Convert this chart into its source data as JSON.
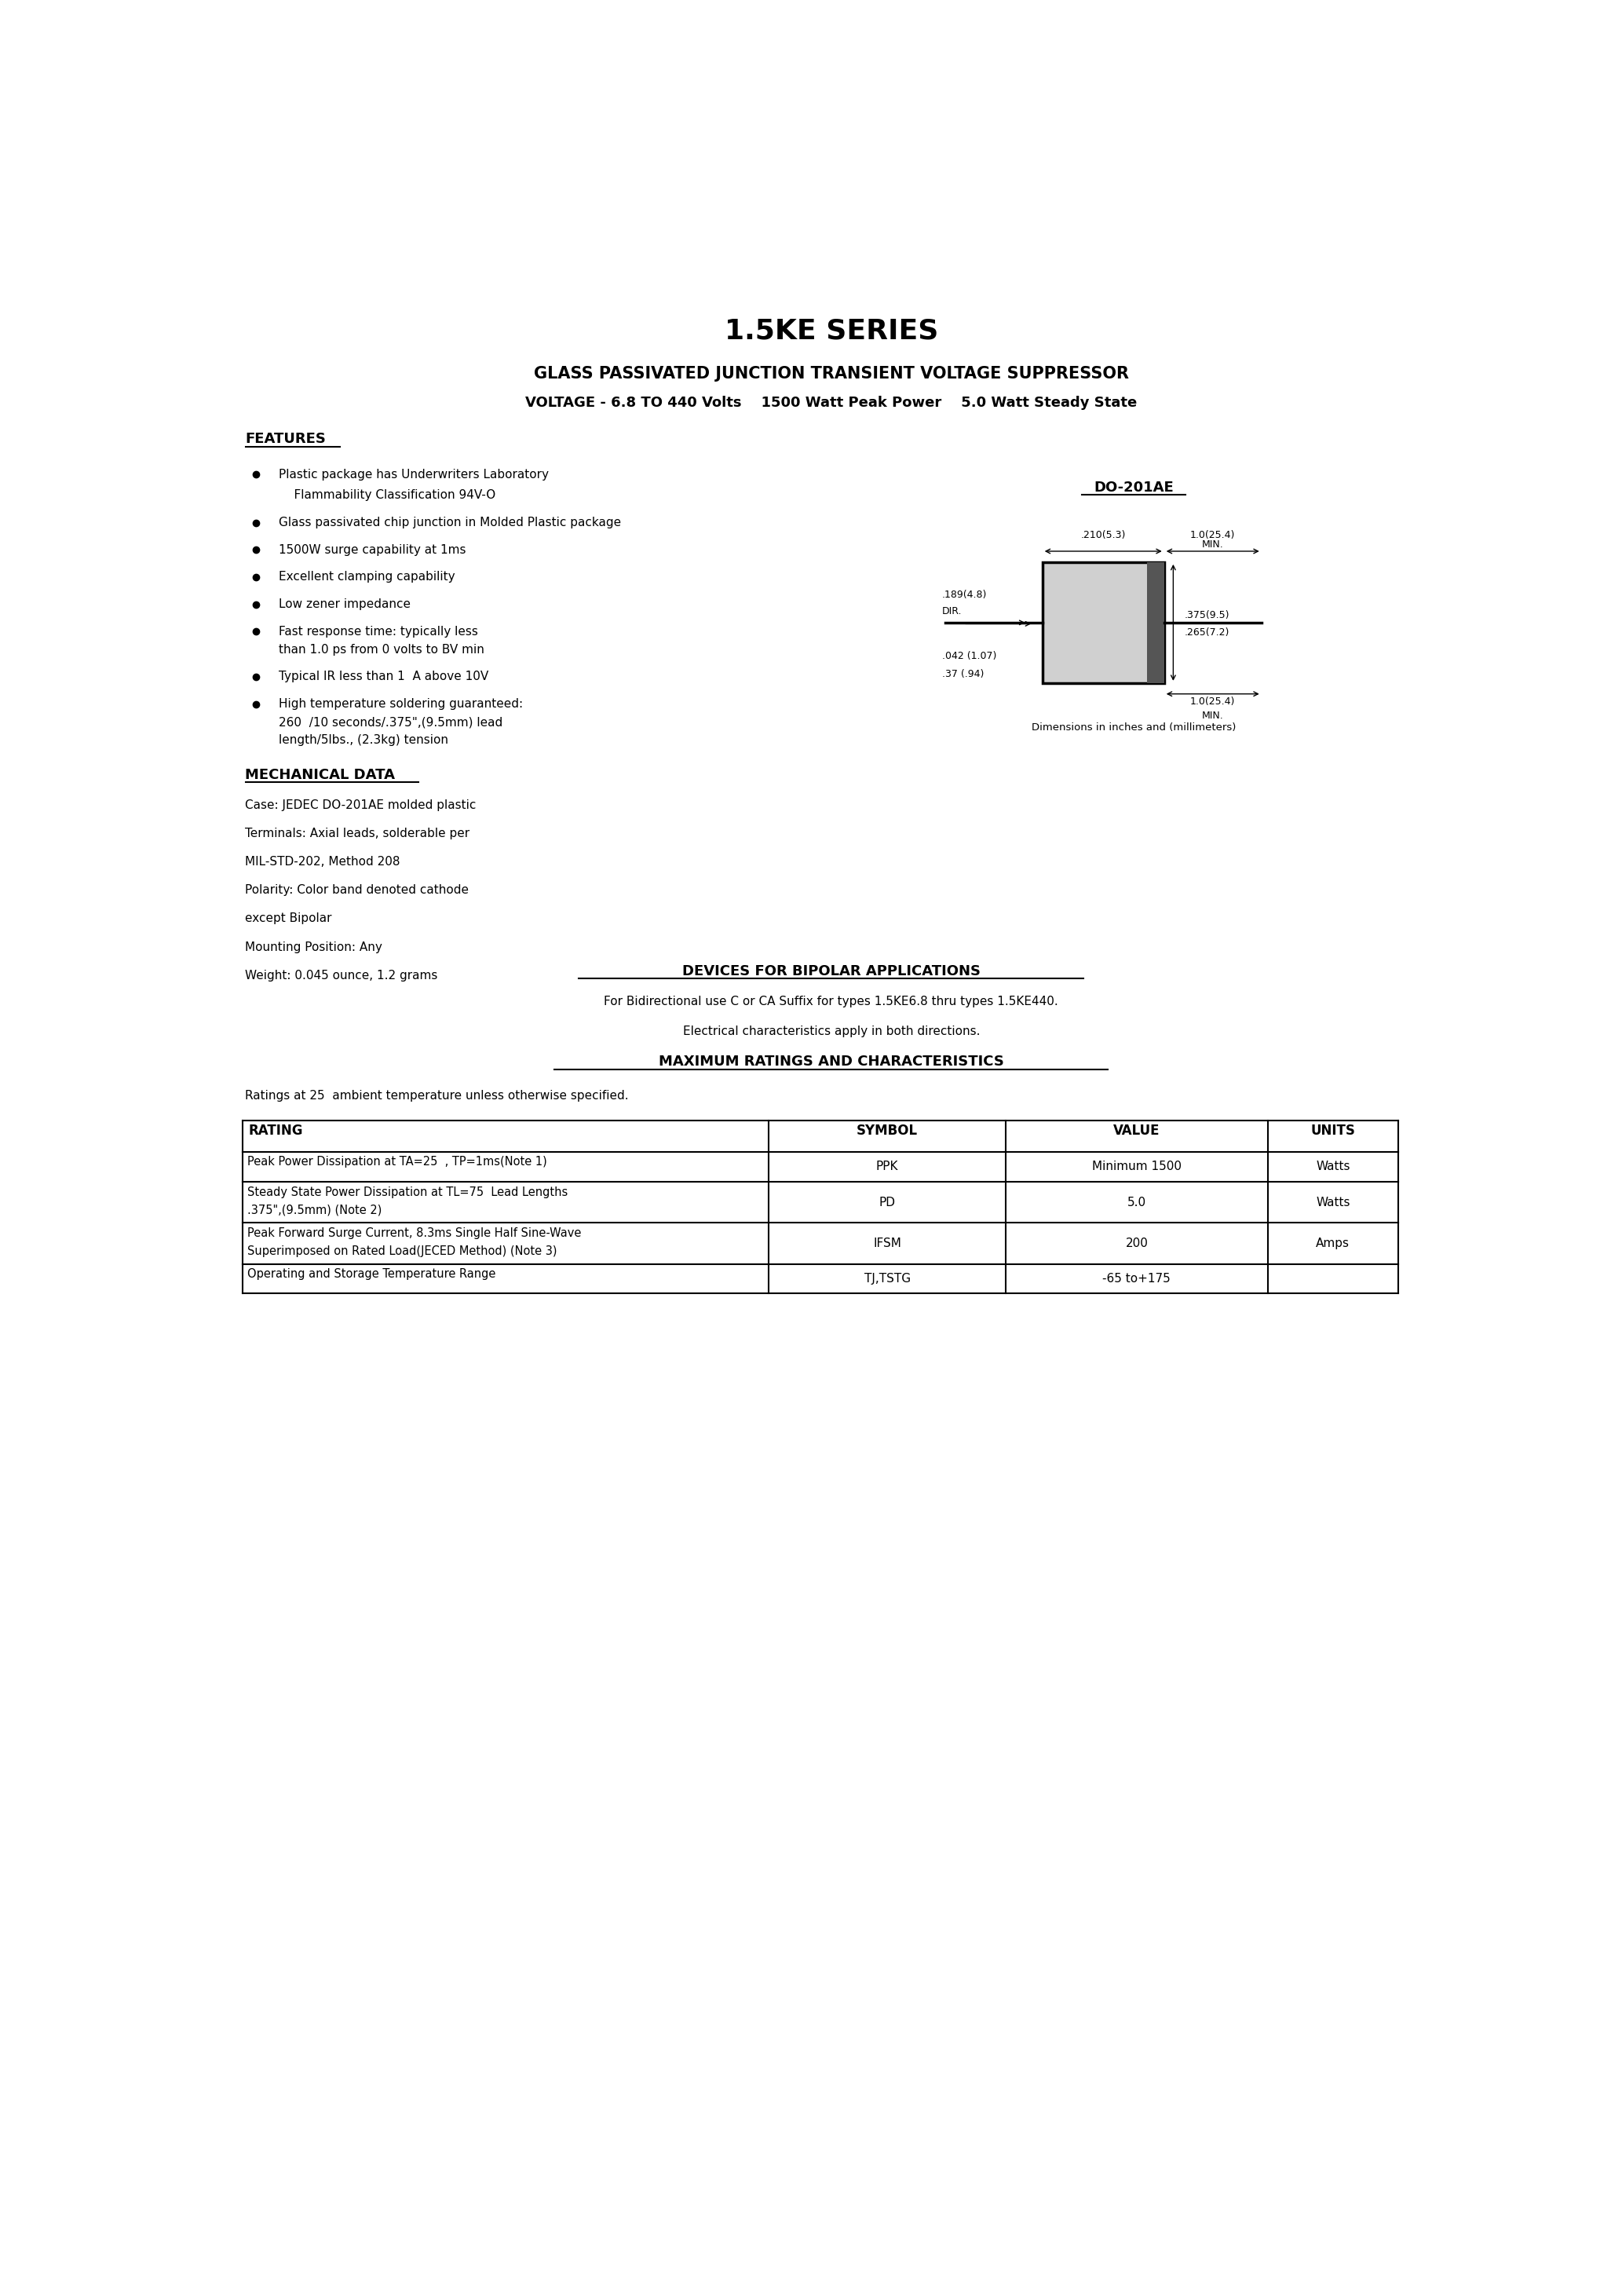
{
  "title": "1.5KE SERIES",
  "subtitle1": "GLASS PASSIVATED JUNCTION TRANSIENT VOLTAGE SUPPRESSOR",
  "subtitle2": "VOLTAGE - 6.8 TO 440 Volts    1500 Watt Peak Power    5.0 Watt Steady State",
  "bg_color": "#ffffff",
  "text_color": "#000000",
  "features_title": "FEATURES",
  "diode_label": "DO-201AE",
  "dim_caption": "Dimensions in inches and (millimeters)",
  "mech_title": "MECHANICAL DATA",
  "mech_lines": [
    "Case: JEDEC DO-201AE molded plastic",
    "Terminals: Axial leads, solderable per",
    "MIL-STD-202, Method 208",
    "Polarity: Color band denoted cathode",
    "except Bipolar",
    "Mounting Position: Any",
    "Weight: 0.045 ounce, 1.2 grams"
  ],
  "bipolar_title": "DEVICES FOR BIPOLAR APPLICATIONS",
  "bipolar_line1": "For Bidirectional use C or CA Suffix for types 1.5KE6.8 thru types 1.5KE440.",
  "bipolar_line2": "Electrical characteristics apply in both directions.",
  "ratings_title": "MAXIMUM RATINGS AND CHARACTERISTICS",
  "ratings_note": "Ratings at 25  ambient temperature unless otherwise specified.",
  "table_headers": [
    "RATING",
    "SYMBOL",
    "VALUE",
    "UNITS"
  ],
  "table_rows": [
    [
      "Peak Power Dissipation at TA=25  , TP=1ms(Note 1)",
      "PPK",
      "Minimum 1500",
      "Watts"
    ],
    [
      "Steady State Power Dissipation at TL=75  Lead Lengths\n.375\",(9.5mm) (Note 2)",
      "PD",
      "5.0",
      "Watts"
    ],
    [
      "Peak Forward Surge Current, 8.3ms Single Half Sine-Wave\nSuperimposed on Rated Load(JECED Method) (Note 3)",
      "IFSM",
      "200",
      "Amps"
    ],
    [
      "Operating and Storage Temperature Range",
      "TJ,TSTG",
      "-65 to+175",
      ""
    ]
  ],
  "feat_items": [
    [
      26.05,
      true,
      "Plastic package has Underwriters Laboratory"
    ],
    [
      25.7,
      false,
      "    Flammability Classification 94V-O"
    ],
    [
      25.25,
      true,
      "Glass passivated chip junction in Molded Plastic package"
    ],
    [
      24.8,
      true,
      "1500W surge capability at 1ms"
    ],
    [
      24.35,
      true,
      "Excellent clamping capability"
    ],
    [
      23.9,
      true,
      "Low zener impedance"
    ],
    [
      23.45,
      true,
      "Fast response time: typically less"
    ],
    [
      23.15,
      false,
      "than 1.0 ps from 0 volts to BV min"
    ],
    [
      22.7,
      true,
      "Typical IR less than 1  A above 10V"
    ],
    [
      22.25,
      true,
      "High temperature soldering guaranteed:"
    ],
    [
      21.95,
      false,
      "260  /10 seconds/.375\",(9.5mm) lead"
    ],
    [
      21.65,
      false,
      "length/5lbs., (2.3kg) tension"
    ]
  ]
}
